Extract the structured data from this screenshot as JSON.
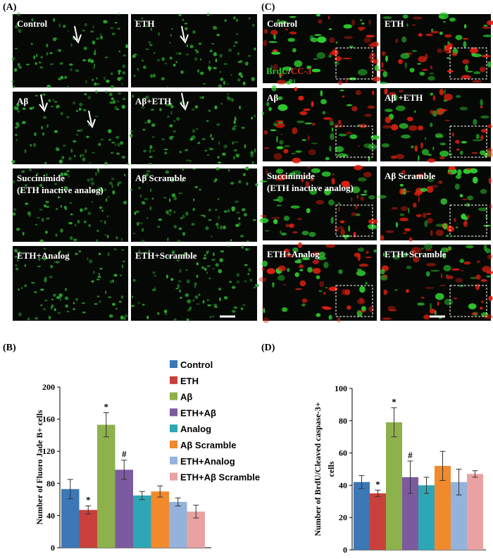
{
  "panels": {
    "A": {
      "label": "(A)",
      "images": [
        "Control",
        "ETH",
        "Aβ",
        "Aβ+ETH",
        [
          "Succinimide",
          "(ETH inactive analog)"
        ],
        "Aβ Scramble",
        "ETH+Analog",
        "ETH+Scramble"
      ]
    },
    "C": {
      "label": "(C)",
      "stain": [
        "BrdU",
        "/",
        "CC-3"
      ],
      "images": [
        "Control",
        "ETH",
        "Aβ",
        "Aβ +ETH",
        [
          "Succinimide",
          "(ETH inactive analog)"
        ],
        "Aβ Scramble",
        "ETH+Analog",
        "ETH+Scramble"
      ]
    }
  },
  "chart_data": [
    {
      "type": "bar",
      "label": "(B)",
      "ylabel": [
        "Number of Fluoro Jade B+ cells"
      ],
      "categories": [
        "Control",
        "ETH",
        "Aβ",
        "ETH+Aβ",
        "Analog",
        "Aβ Scramble",
        "ETH+Analog",
        "ETH+Aβ Scramble"
      ],
      "colors": [
        "#3b78b5",
        "#c8403b",
        "#8db14b",
        "#7b5a9f",
        "#2ea6b5",
        "#f08a2d",
        "#93b3dc",
        "#e9a2a1"
      ],
      "values": [
        73,
        47,
        153,
        97,
        65,
        70,
        57,
        45
      ],
      "errors": [
        12,
        5,
        15,
        12,
        5,
        7,
        5,
        8
      ],
      "annotations": [
        null,
        "*",
        "*",
        "#",
        null,
        null,
        null,
        null
      ],
      "ylim": [
        0,
        200
      ],
      "yticks": [
        0,
        40,
        80,
        120,
        160,
        200
      ]
    },
    {
      "type": "bar",
      "label": "(D)",
      "ylabel": [
        "Number of BrdU/Cleaved caspase-3+",
        "cells"
      ],
      "values": [
        42,
        35,
        79,
        45,
        40,
        52,
        42,
        47
      ],
      "errors": [
        4,
        2,
        9,
        10,
        5,
        9,
        8,
        2
      ],
      "annotations": [
        null,
        "*",
        "*",
        "#",
        null,
        null,
        null,
        null
      ],
      "ylim": [
        0,
        100
      ],
      "yticks": [
        0,
        20,
        40,
        60,
        80,
        100
      ]
    }
  ]
}
